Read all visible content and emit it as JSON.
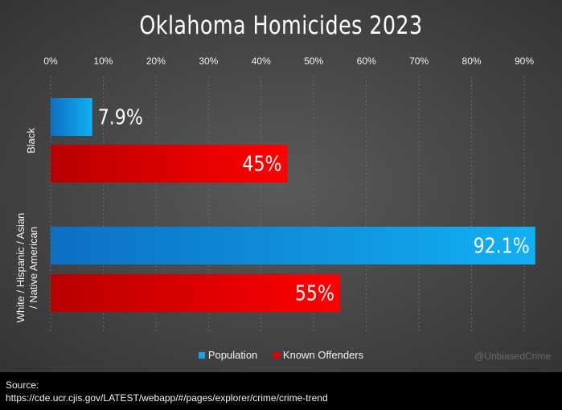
{
  "chart_data": {
    "type": "bar",
    "orientation": "horizontal",
    "title": "Oklahoma Homicides 2023",
    "categories": [
      "Black",
      "White / Hispanic / Asian / Native American"
    ],
    "series": [
      {
        "name": "Population",
        "values": [
          7.9,
          92.1
        ],
        "labels": [
          "7.9%",
          "92.1%"
        ],
        "color": "#1aa3e8"
      },
      {
        "name": "Known Offenders",
        "values": [
          45,
          55
        ],
        "labels": [
          "45%",
          "55%"
        ],
        "color": "#e60000"
      }
    ],
    "xlim": [
      0,
      90
    ],
    "x_ticks": [
      "0%",
      "10%",
      "20%",
      "30%",
      "40%",
      "50%",
      "60%",
      "70%",
      "80%",
      "90%"
    ],
    "xaxis_position": "top",
    "grid": true,
    "legend_position": "bottom"
  },
  "watermark": "@UnbiasedCrime",
  "source": {
    "label": "Source:",
    "url": "https://cde.ucr.cjis.gov/LATEST/webapp/#/pages/explorer/crime/crime-trend"
  }
}
